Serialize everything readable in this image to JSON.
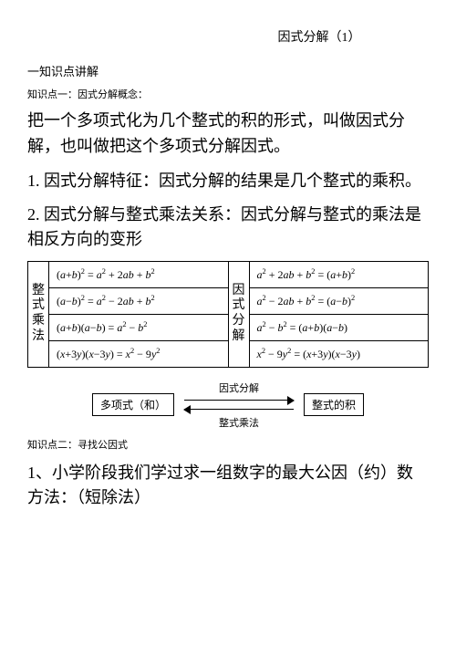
{
  "title": "因式分解（1）",
  "section_intro": "一知识点讲解",
  "kp1_heading": "知识点一：因式分解概念：",
  "p_definition": "把一个多项式化为几个整式的积的形式，叫做因式分解，也叫做把这个多项式分解因式。",
  "p_feature": "1. 因式分解特征：因式分解的结果是几个整式的乘积。",
  "p_relation": "2. 因式分解与整式乘法关系：因式分解与整式的乘法是相反方向的变形",
  "table": {
    "left_label": "整式乘法",
    "right_label": "因式分解",
    "left_cells": [
      "(a+b)² = a² + 2ab + b²",
      "(a−b)² = a² − 2ab + b²",
      "(a+b)(a−b) = a² − b²",
      "(x+3y)(x−3y) = x² − 9y²"
    ],
    "right_cells": [
      "a² + 2ab + b² = (a+b)²",
      "a² − 2ab + b² = (a−b)²",
      "a² − b² = (a+b)(a−b)",
      "x² − 9y² = (x+3y)(x−3y)"
    ]
  },
  "flow": {
    "left_box": "多项式（和）",
    "top_label": "因式分解",
    "bottom_label": "整式乘法",
    "right_box": "整式的积"
  },
  "kp2_heading": "知识点二：寻找公因式",
  "p_primary": "1、小学阶段我们学过求一组数字的最大公因（约）数方法：（短除法）"
}
